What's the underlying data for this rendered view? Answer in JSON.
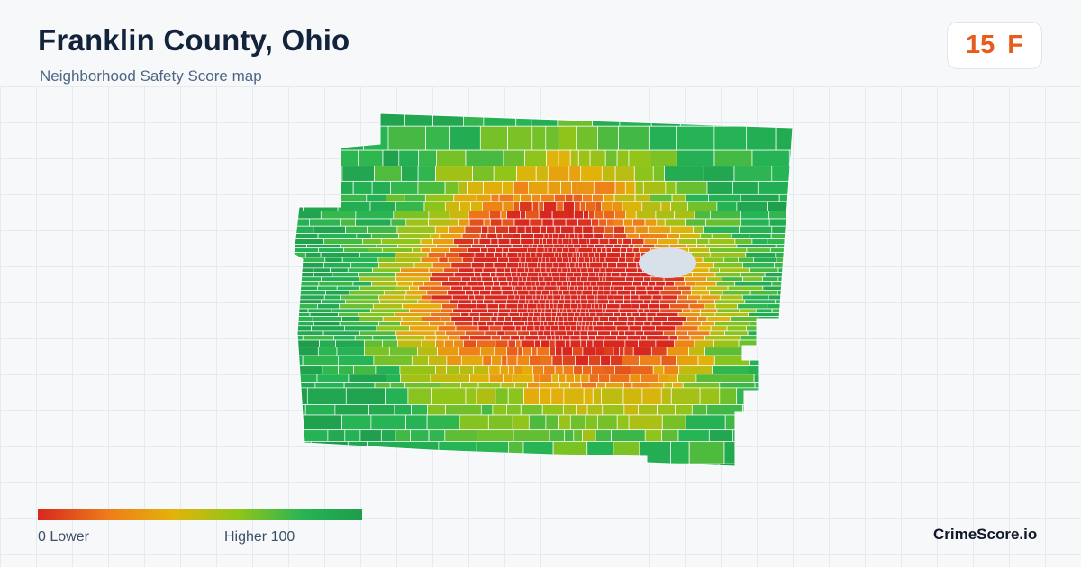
{
  "header": {
    "title": "Franklin County, Ohio",
    "subtitle": "Neighborhood Safety Score map"
  },
  "score": {
    "value": "15",
    "grade": "F",
    "color": "#e65c1c"
  },
  "legend": {
    "min_label": "0  Lower",
    "max_label": "Higher  100",
    "scale": {
      "min": 0,
      "max": 100
    },
    "colors": [
      "#d7281f",
      "#ef7d1a",
      "#e2b30a",
      "#8fc51a",
      "#26b455",
      "#1f9c4c"
    ]
  },
  "map": {
    "region": "Franklin County, Ohio",
    "water_color": "#d8e0ea",
    "border_color": "#ffffff"
  },
  "brand": {
    "name": "CrimeScore.io"
  }
}
